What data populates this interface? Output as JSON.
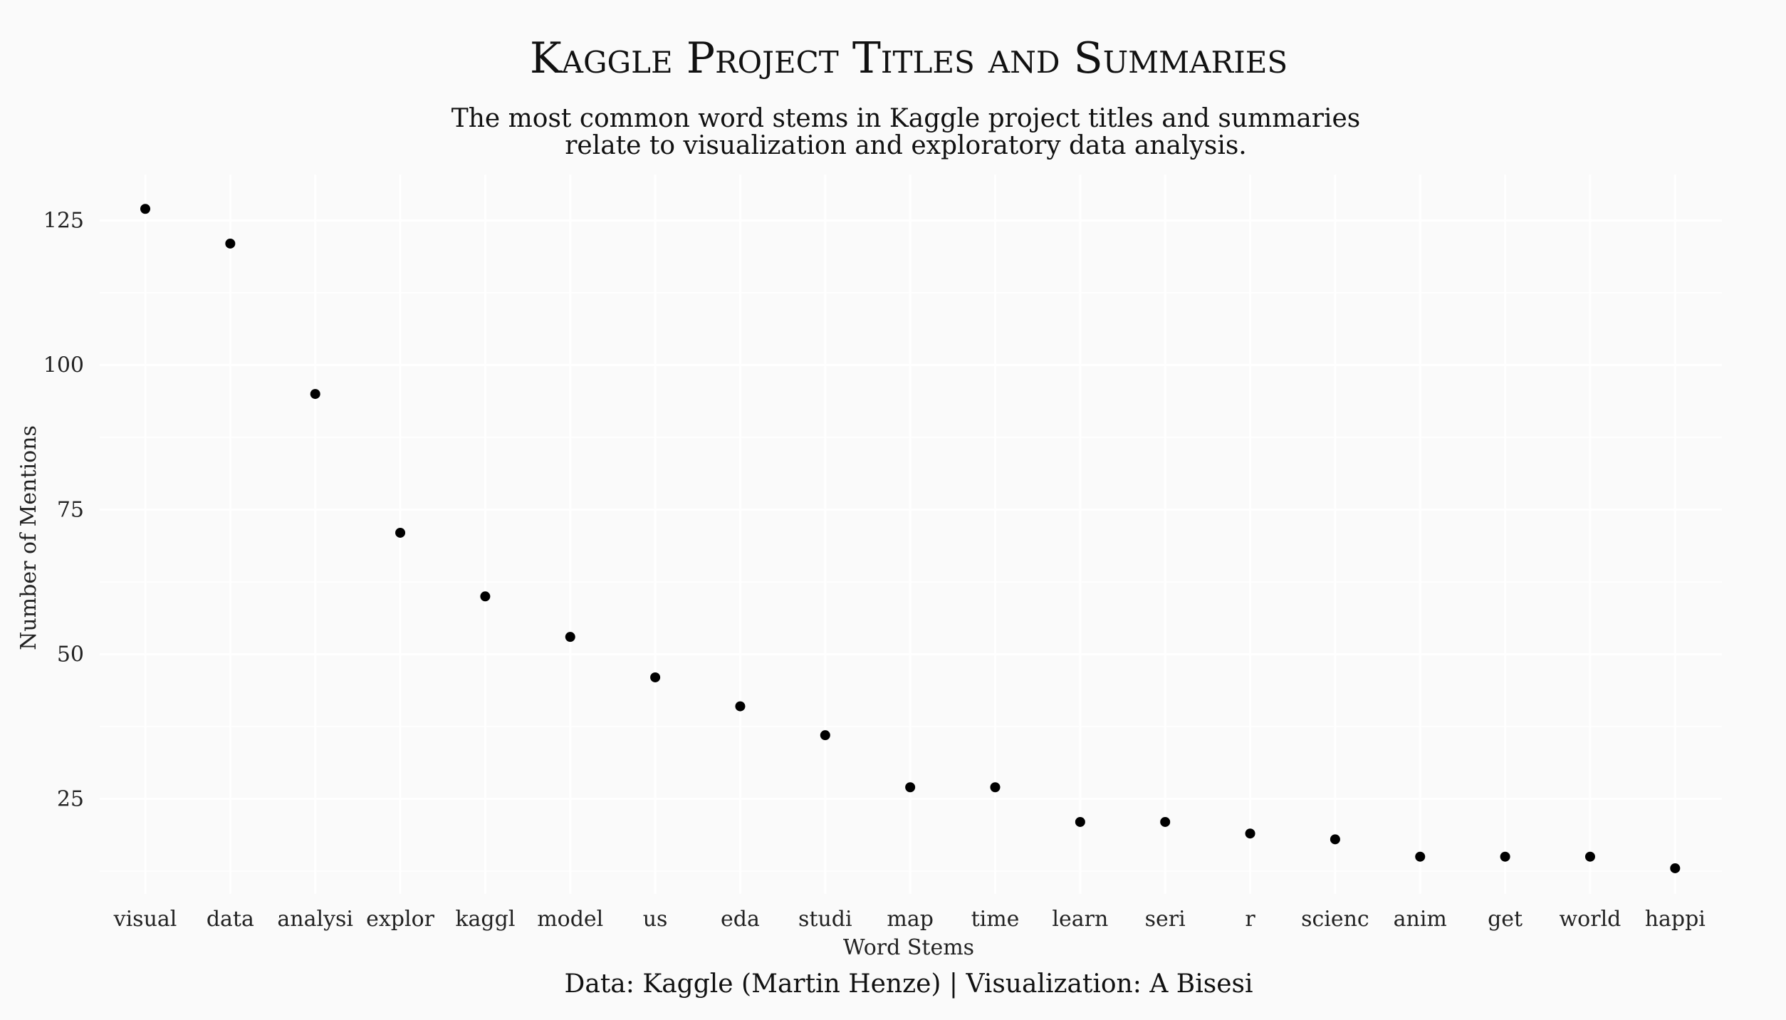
{
  "chart_data": {
    "type": "scatter",
    "title": "Kaggle Project Titles and Summaries",
    "subtitle_lines": [
      "The most common word stems in Kaggle project titles and summaries",
      "relate to visualization and exploratory data analysis."
    ],
    "xlabel": "Word Stems",
    "ylabel": "Number of Mentions",
    "caption": "Data: Kaggle (Martin Henze) | Visualization: A Bisesi",
    "categories": [
      "visual",
      "data",
      "analysi",
      "explor",
      "kaggl",
      "model",
      "us",
      "eda",
      "studi",
      "map",
      "time",
      "learn",
      "seri",
      "r",
      "scienc",
      "anim",
      "get",
      "world",
      "happi"
    ],
    "values": [
      127,
      121,
      95,
      71,
      60,
      53,
      46,
      41,
      36,
      27,
      27,
      21,
      21,
      19,
      18,
      15,
      15,
      15,
      13
    ],
    "y_ticks": [
      25,
      50,
      75,
      100,
      125
    ],
    "ylim": [
      7,
      134
    ],
    "grid": true,
    "point_color": "#000000",
    "grid_color": "#ffffff",
    "background": "#fafafa"
  }
}
